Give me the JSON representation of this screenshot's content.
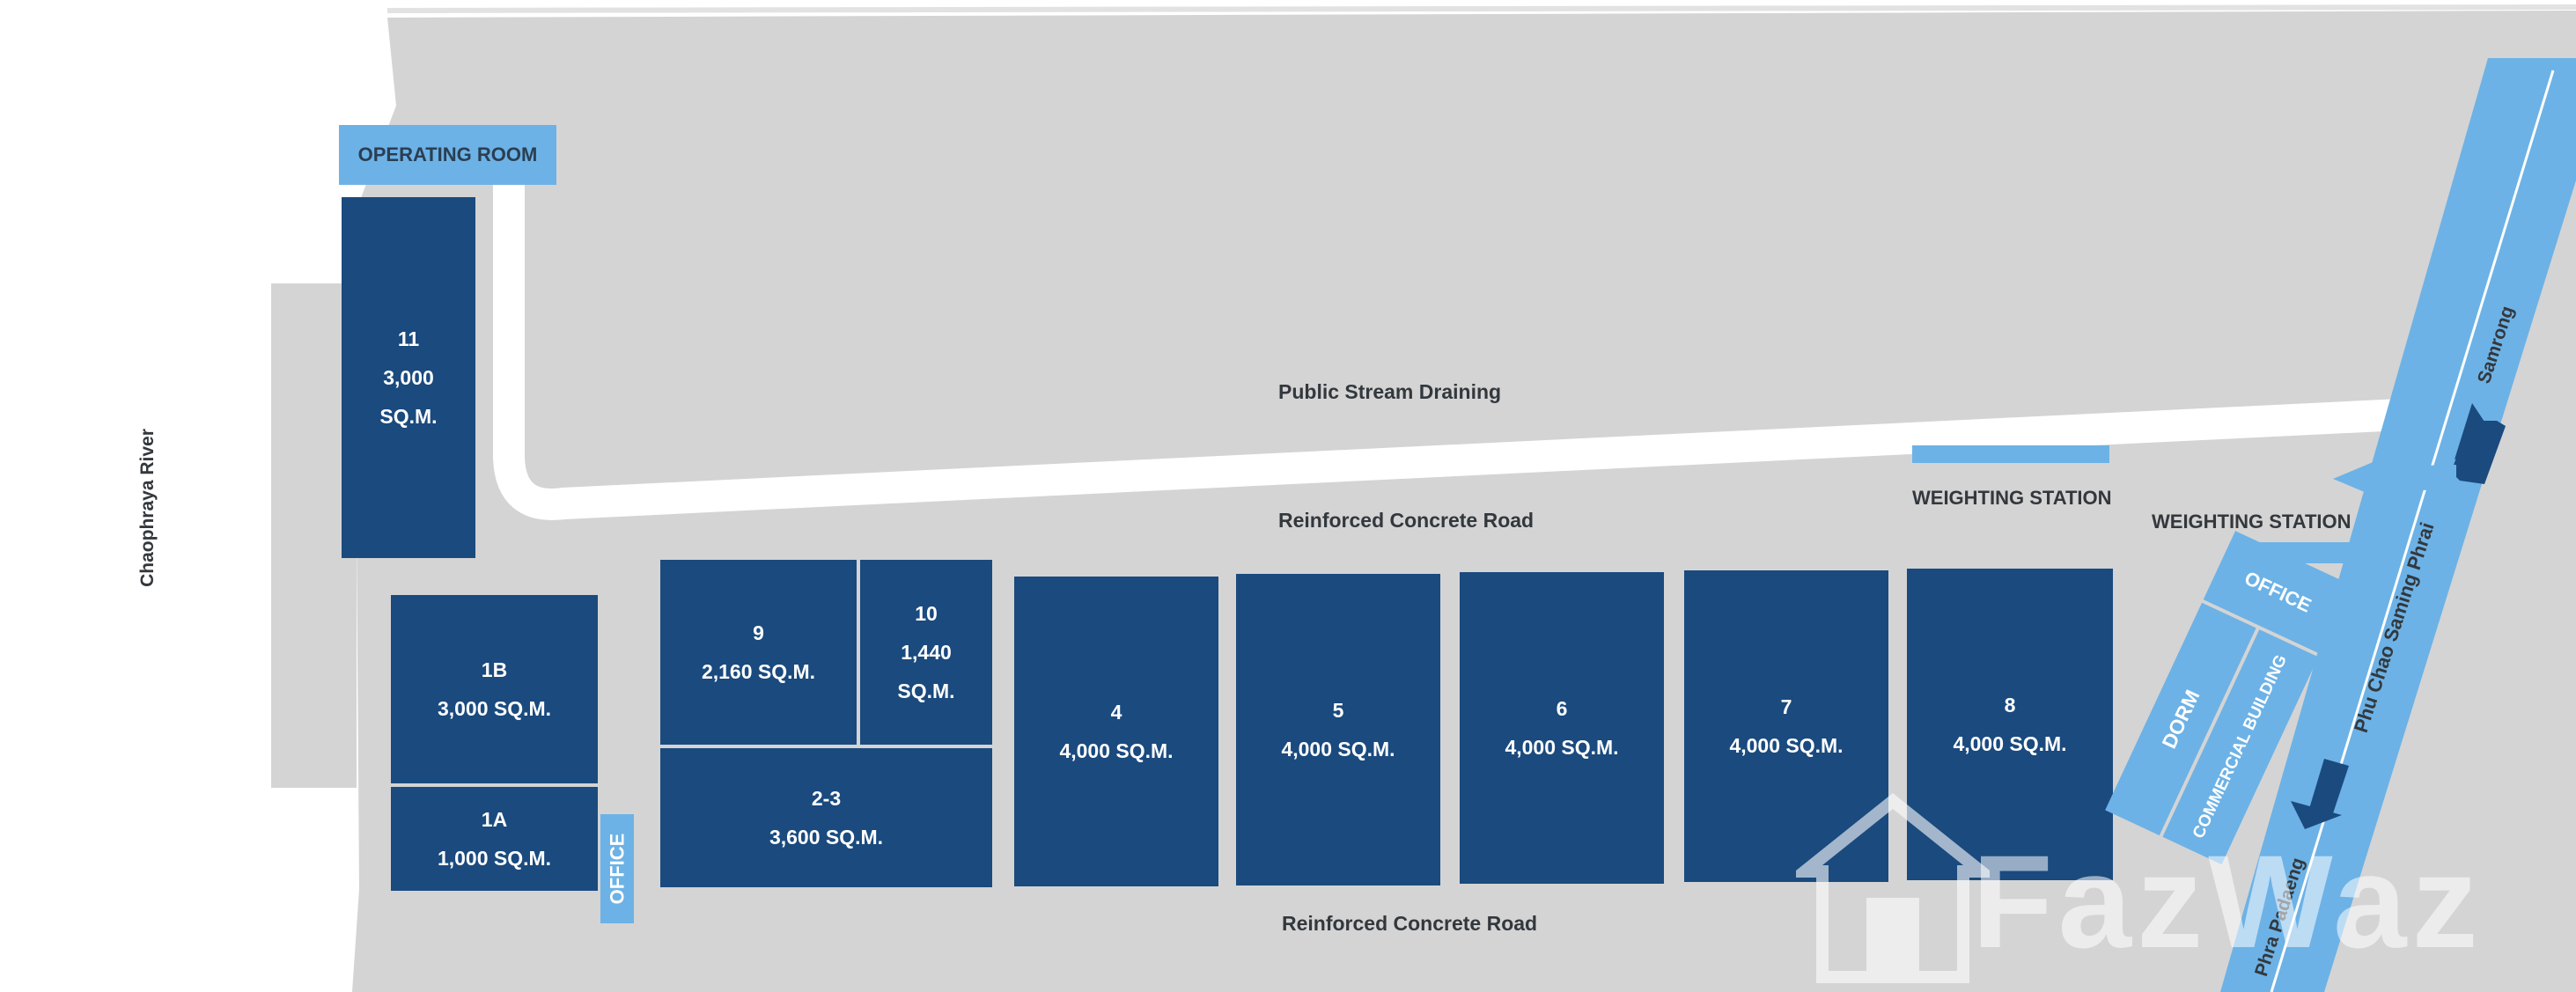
{
  "labels": {
    "river": "Chaophraya River",
    "stream": "Public Stream Draining",
    "road_top": "Reinforced Concrete Road",
    "road_bottom": "Reinforced Concrete Road",
    "operating_room": "OPERATING ROOM",
    "weighting_station_1": "WEIGHTING STATION",
    "weighting_station_2": "WEIGHTING STATION",
    "office_left": "OFFICE",
    "office_right": "OFFICE",
    "dorm": "DORM",
    "commercial_building": "COMMERCIAL BUILDING",
    "highway": "Phu Chao Saming Phrai",
    "samrong": "Samrong",
    "phra_padaeng": "Phra Padaeng"
  },
  "warehouses": {
    "w11": {
      "number": "11",
      "area_value": "3,000",
      "area_unit": "SQ.M."
    },
    "w1b": {
      "number": "1B",
      "area": "3,000 SQ.M."
    },
    "w1a": {
      "number": "1A",
      "area": "1,000 SQ.M."
    },
    "w9": {
      "number": "9",
      "area": "2,160 SQ.M."
    },
    "w10": {
      "number": "10",
      "area_value": "1,440",
      "area_unit": "SQ.M."
    },
    "w23": {
      "number": "2-3",
      "area": "3,600 SQ.M."
    },
    "w4": {
      "number": "4",
      "area": "4,000 SQ.M."
    },
    "w5": {
      "number": "5",
      "area": "4,000 SQ.M."
    },
    "w6": {
      "number": "6",
      "area": "4,000 SQ.M."
    },
    "w7": {
      "number": "7",
      "area": "4,000 SQ.M."
    },
    "w8": {
      "number": "8",
      "area": "4,000 SQ.M."
    }
  },
  "watermark": "FazWaz",
  "colors": {
    "ground": "#d4d4d4",
    "warehouse": "#1a4a7e",
    "highlight": "#6cb2e6",
    "road": "#ffffff"
  }
}
